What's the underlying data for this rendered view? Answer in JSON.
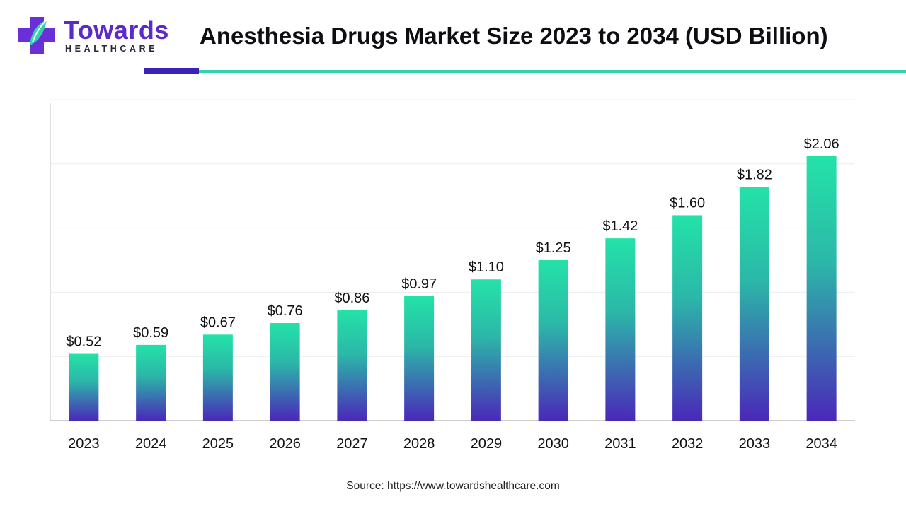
{
  "brand": {
    "name": "Towards",
    "sub": "HEALTHCARE",
    "colors": {
      "purple": "#5b2ac8",
      "teal": "#33d1ae"
    }
  },
  "header": {
    "title": "Anesthesia Drugs Market Size 2023 to 2034 (USD Billion)"
  },
  "footer": {
    "source": "Source: https://www.towardshealthcare.com"
  },
  "chart_data": {
    "type": "bar",
    "title": "Anesthesia Drugs Market Size 2023 to 2034 (USD Billion)",
    "categories": [
      "2023",
      "2024",
      "2025",
      "2026",
      "2027",
      "2028",
      "2029",
      "2030",
      "2031",
      "2032",
      "2033",
      "2034"
    ],
    "values": [
      0.52,
      0.59,
      0.67,
      0.76,
      0.86,
      0.97,
      1.1,
      1.25,
      1.42,
      1.6,
      1.82,
      2.06
    ],
    "value_labels": [
      "$0.52",
      "$0.59",
      "$0.67",
      "$0.76",
      "$0.86",
      "$0.97",
      "$1.10",
      "$1.25",
      "$1.42",
      "$1.60",
      "$1.82",
      "$2.06"
    ],
    "xlabel": "",
    "ylabel": "",
    "ylim": [
      0,
      2.5
    ],
    "grid": true,
    "bar_gradient": {
      "top": "#24e2a8",
      "bottom": "#4a28b9"
    }
  }
}
